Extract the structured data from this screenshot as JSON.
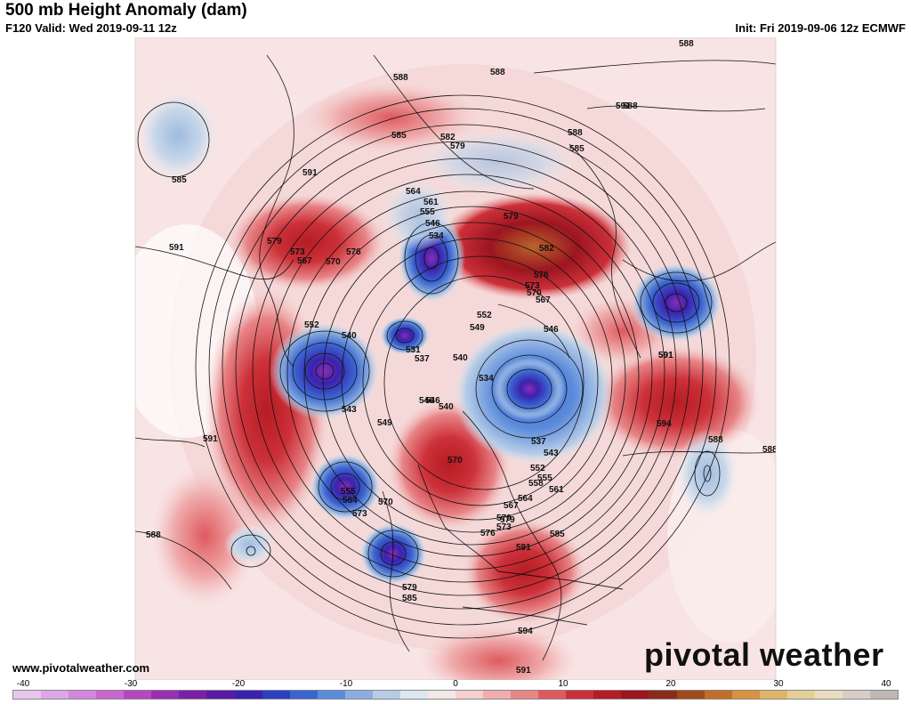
{
  "header": {
    "title": "500 mb Height Anomaly (dam)",
    "valid": "F120 Valid: Wed 2019-09-11 12z",
    "init": "Init: Fri 2019-09-06 12z ECMWF"
  },
  "footer": {
    "website": "www.pivotalweather.com",
    "logo_left": "pivot",
    "logo_mid": "a",
    "logo_right": "l weather"
  },
  "colorbar": {
    "ticks": [
      "-40",
      "-30",
      "-20",
      "-10",
      "0",
      "10",
      "20",
      "30",
      "40"
    ],
    "colors": [
      "#e7c7ef",
      "#dda6e6",
      "#d486dc",
      "#c965cf",
      "#b845c2",
      "#9a2fb3",
      "#7c1fa8",
      "#5b1aa6",
      "#3b22ad",
      "#2a40c1",
      "#3a64d0",
      "#5b8bdc",
      "#8aaedf",
      "#b7cde6",
      "#dde7ef",
      "#f3e8e8",
      "#f6cfcf",
      "#f0adae",
      "#e88587",
      "#de5a5e",
      "#cc3038",
      "#b51c24",
      "#9c1520",
      "#8c2b1a",
      "#a04a1c",
      "#c46d28",
      "#d79340",
      "#deb566",
      "#e5cf96",
      "#ebdcc1",
      "#d8cec7",
      "#c0b8b4"
    ]
  },
  "map_labels": [
    "588",
    "588",
    "588",
    "588",
    "591",
    "585",
    "582",
    "579",
    "585",
    "588",
    "591",
    "585",
    "564",
    "561",
    "555",
    "546",
    "534",
    "579",
    "582",
    "576",
    "573",
    "570",
    "567",
    "579",
    "576",
    "573",
    "570",
    "567",
    "591",
    "588",
    "552",
    "540",
    "531",
    "549",
    "552",
    "546",
    "537",
    "540",
    "534",
    "546",
    "543",
    "549",
    "546",
    "540",
    "537",
    "543",
    "552",
    "555",
    "558",
    "561",
    "564",
    "567",
    "570",
    "573",
    "576",
    "579",
    "585",
    "591",
    "570",
    "564",
    "555",
    "573",
    "579",
    "585",
    "594",
    "591",
    "588",
    "591",
    "594",
    "591",
    "588",
    "591",
    "570"
  ]
}
